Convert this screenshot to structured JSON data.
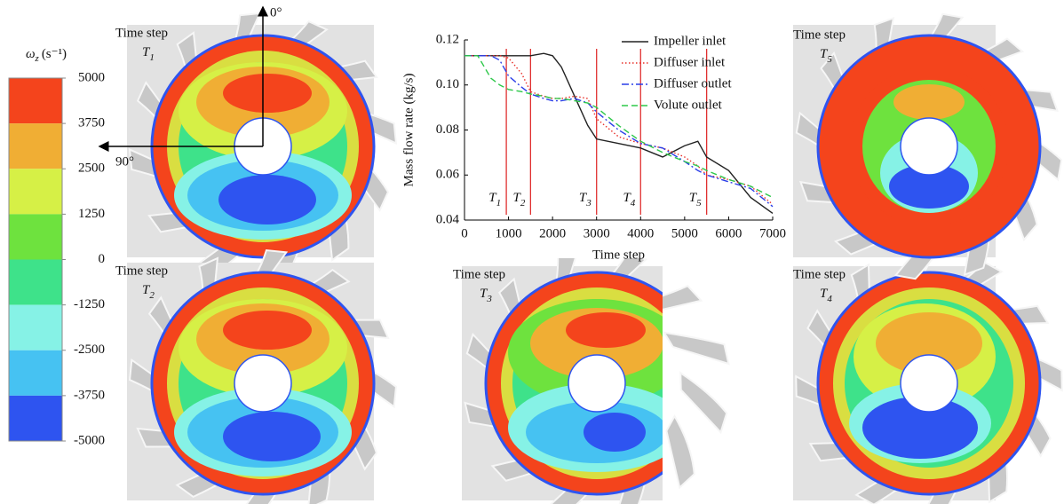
{
  "colorbar": {
    "symbol": "ω",
    "subscript": "z",
    "unit": "(s⁻¹)",
    "ticks": [
      5000,
      3750,
      2500,
      1250,
      0,
      -1250,
      -2500,
      -3750,
      -5000
    ],
    "colors": [
      "#f4441c",
      "#f0ae34",
      "#d6f046",
      "#6ee23e",
      "#3ee28a",
      "#86f2e6",
      "#46c2f2",
      "#2e54f0"
    ]
  },
  "orientation": {
    "up": "0°",
    "left": "90°"
  },
  "panels": [
    {
      "step_label": "Time step",
      "t": "T",
      "sub": "1"
    },
    {
      "step_label": "Time step",
      "t": "T",
      "sub": "2"
    },
    {
      "step_label": "Time step",
      "t": "T",
      "sub": "3"
    },
    {
      "step_label": "Time step",
      "t": "T",
      "sub": "4"
    },
    {
      "step_label": "Time step",
      "t": "T",
      "sub": "5"
    }
  ],
  "chart_data": {
    "type": "line",
    "xlabel": "Time step",
    "ylabel": "Mass flow rate (kg/s)",
    "x": [
      0,
      300,
      600,
      800,
      1000,
      1300,
      1500,
      1800,
      2000,
      2200,
      2500,
      2800,
      3000,
      3500,
      4000,
      4500,
      5000,
      5300,
      5500,
      6000,
      6500,
      7000
    ],
    "series": [
      {
        "name": "Impeller inlet",
        "color": "#222222",
        "dash": "solid",
        "values": [
          0.113,
          0.113,
          0.113,
          0.113,
          0.113,
          0.113,
          0.113,
          0.114,
          0.113,
          0.108,
          0.095,
          0.082,
          0.076,
          0.074,
          0.072,
          0.068,
          0.073,
          0.075,
          0.068,
          0.062,
          0.05,
          0.043
        ]
      },
      {
        "name": "Diffuser inlet",
        "color": "#e8302a",
        "dash": "dotted",
        "values": [
          0.113,
          0.113,
          0.113,
          0.113,
          0.112,
          0.105,
          0.097,
          0.095,
          0.094,
          0.094,
          0.095,
          0.094,
          0.085,
          0.077,
          0.074,
          0.072,
          0.068,
          0.064,
          0.06,
          0.058,
          0.055,
          0.047
        ]
      },
      {
        "name": "Diffuser outlet",
        "color": "#2a3ee8",
        "dash": "dashdot",
        "values": [
          0.113,
          0.113,
          0.113,
          0.111,
          0.104,
          0.099,
          0.096,
          0.094,
          0.093,
          0.093,
          0.094,
          0.092,
          0.088,
          0.08,
          0.074,
          0.072,
          0.066,
          0.062,
          0.06,
          0.057,
          0.054,
          0.046
        ]
      },
      {
        "name": "Volute outlet",
        "color": "#2ec84a",
        "dash": "dashed",
        "values": [
          0.113,
          0.113,
          0.103,
          0.1,
          0.098,
          0.097,
          0.096,
          0.095,
          0.094,
          0.094,
          0.093,
          0.092,
          0.09,
          0.082,
          0.075,
          0.07,
          0.066,
          0.064,
          0.062,
          0.058,
          0.055,
          0.05
        ]
      }
    ],
    "markers": [
      {
        "x": 950,
        "t": "T",
        "sub": "1"
      },
      {
        "x": 1500,
        "t": "T",
        "sub": "2"
      },
      {
        "x": 3000,
        "t": "T",
        "sub": "3"
      },
      {
        "x": 4000,
        "t": "T",
        "sub": "4"
      },
      {
        "x": 5500,
        "t": "T",
        "sub": "5"
      }
    ],
    "marker_color": "#e03030",
    "xlim": [
      0,
      7000
    ],
    "xticks": [
      0,
      1000,
      2000,
      3000,
      4000,
      5000,
      6000,
      7000
    ],
    "ylim": [
      0.04,
      0.12
    ],
    "yticks": [
      0.04,
      0.06,
      0.08,
      {
        "value": 0.1,
        "label": "0.10"
      },
      0.12
    ],
    "legend": "upper right"
  }
}
